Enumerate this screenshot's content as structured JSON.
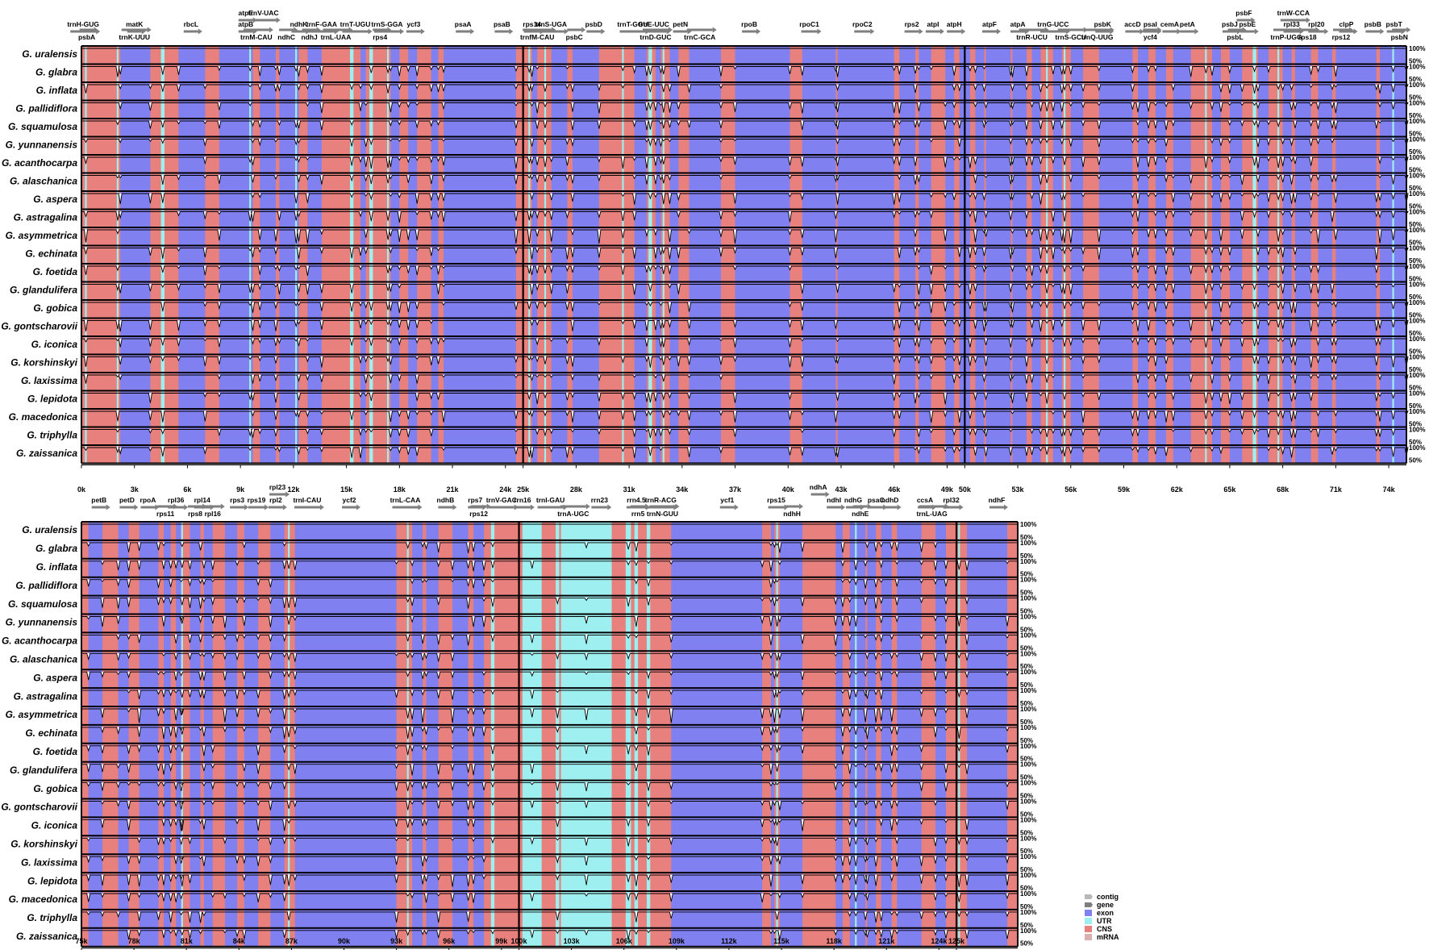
{
  "chart_data": {
    "type": "area",
    "title": "",
    "species": [
      "G. uralensis",
      "G. glabra",
      "G. inflata",
      "G. pallidiflora",
      "G. squamulosa",
      "G. yunnanensis",
      "G. acanthocarpa",
      "G. alaschanica",
      "G. aspera",
      "G. astragalina",
      "G. asymmetrica",
      "G. echinata",
      "G. foetida",
      "G. glandulifera",
      "G. gobica",
      "G. gontscharovii",
      "G. iconica",
      "G. korshinskyi",
      "G. laxissima",
      "G. lepidota",
      "G. macedonica",
      "G. triphylla",
      "G. zaissanica"
    ],
    "y_tick_labels": [
      "50%",
      "100%"
    ],
    "ylim": [
      50,
      100
    ],
    "legend": [
      {
        "label": "contig",
        "color": "#b8b8b8"
      },
      {
        "label": "gene",
        "color": "#7f7f7f"
      },
      {
        "label": "exon",
        "color": "#8080f0"
      },
      {
        "label": "UTR",
        "color": "#9ef0f0"
      },
      {
        "label": "CNS",
        "color": "#e8807e"
      },
      {
        "label": "mRNA",
        "color": "#d8b0b0"
      }
    ],
    "colors": {
      "exon": "#8080f0",
      "utr": "#9ef0f0",
      "cns": "#e8807e"
    },
    "panels": [
      {
        "xlim": [
          0,
          75000
        ],
        "x_ticks": [
          {
            "v": 0,
            "t": "0k"
          },
          {
            "v": 3000,
            "t": "3k"
          },
          {
            "v": 6000,
            "t": "6k"
          },
          {
            "v": 9000,
            "t": "9k"
          },
          {
            "v": 12000,
            "t": "12k"
          },
          {
            "v": 15000,
            "t": "15k"
          },
          {
            "v": 18000,
            "t": "18k"
          },
          {
            "v": 21000,
            "t": "21k"
          },
          {
            "v": 24000,
            "t": "24k"
          },
          {
            "v": 25000,
            "t": "25k"
          },
          {
            "v": 28000,
            "t": "28k"
          },
          {
            "v": 31000,
            "t": "31k"
          },
          {
            "v": 34000,
            "t": "34k"
          },
          {
            "v": 37000,
            "t": "37k"
          },
          {
            "v": 40000,
            "t": "40k"
          },
          {
            "v": 43000,
            "t": "43k"
          },
          {
            "v": 46000,
            "t": "46k"
          },
          {
            "v": 49000,
            "t": "49k"
          },
          {
            "v": 50000,
            "t": "50k"
          },
          {
            "v": 53000,
            "t": "53k"
          },
          {
            "v": 56000,
            "t": "56k"
          },
          {
            "v": 59000,
            "t": "59k"
          },
          {
            "v": 62000,
            "t": "62k"
          },
          {
            "v": 65000,
            "t": "65k"
          },
          {
            "v": 68000,
            "t": "68k"
          },
          {
            "v": 71000,
            "t": "71k"
          },
          {
            "v": 74000,
            "t": "74k"
          }
        ],
        "contig_breaks": [
          25000,
          50000
        ],
        "exons": [
          [
            2200,
            3900
          ],
          [
            5500,
            7000
          ],
          [
            7800,
            9700
          ],
          [
            10100,
            11000
          ],
          [
            11200,
            12300
          ],
          [
            12800,
            13600
          ],
          [
            15800,
            16100
          ],
          [
            17500,
            18000
          ],
          [
            18500,
            19000
          ],
          [
            19800,
            20200
          ],
          [
            20500,
            24600
          ],
          [
            25500,
            25800
          ],
          [
            26600,
            27500
          ],
          [
            27800,
            29300
          ],
          [
            31300,
            32000
          ],
          [
            32500,
            32800
          ],
          [
            33300,
            33800
          ],
          [
            34400,
            36200
          ],
          [
            37000,
            40100
          ],
          [
            40800,
            42700
          ],
          [
            42800,
            46000
          ],
          [
            46300,
            47200
          ],
          [
            47400,
            48100
          ],
          [
            48900,
            49400
          ],
          [
            49700,
            50300
          ],
          [
            50600,
            51100
          ],
          [
            51200,
            52600
          ],
          [
            52700,
            53500
          ],
          [
            53800,
            54300
          ],
          [
            55000,
            55500
          ],
          [
            56000,
            56700
          ],
          [
            57600,
            59500
          ],
          [
            59800,
            60400
          ],
          [
            60800,
            61400
          ],
          [
            61800,
            62800
          ],
          [
            64000,
            64500
          ],
          [
            65000,
            65700
          ],
          [
            66600,
            67200
          ],
          [
            68000,
            68500
          ],
          [
            68700,
            69600
          ],
          [
            70000,
            70800
          ],
          [
            71000,
            73300
          ],
          [
            73500,
            75000
          ]
        ],
        "utrs": [
          [
            200,
            300
          ],
          [
            2000,
            2100
          ],
          [
            4500,
            4700
          ],
          [
            9500,
            9600
          ],
          [
            12100,
            12200
          ],
          [
            15200,
            15400
          ],
          [
            16300,
            16500
          ],
          [
            17300,
            17400
          ],
          [
            25300,
            25400
          ],
          [
            26200,
            26300
          ],
          [
            30600,
            30700
          ],
          [
            32100,
            32300
          ],
          [
            32900,
            33000
          ],
          [
            54600,
            54700
          ],
          [
            55600,
            55700
          ],
          [
            63600,
            63700
          ],
          [
            66300,
            66500
          ],
          [
            67700,
            67800
          ],
          [
            74200,
            74300
          ]
        ],
        "genes_top": [
          {
            "x": 100,
            "t": "trnH-GUG"
          },
          {
            "x": 3000,
            "t": "matK"
          },
          {
            "x": 6200,
            "t": "rbcL"
          },
          {
            "x": 9300,
            "t": "atpB"
          },
          {
            "x": 12300,
            "t": "ndhK"
          },
          {
            "x": 13600,
            "t": "trnF-GAA"
          },
          {
            "x": 15500,
            "t": "trnT-UGU"
          },
          {
            "x": 17300,
            "t": "trnS-GGA"
          },
          {
            "x": 18800,
            "t": "ycf3"
          },
          {
            "x": 21600,
            "t": "psaA"
          },
          {
            "x": 23800,
            "t": "psaB"
          },
          {
            "x": 25500,
            "t": "rps14"
          },
          {
            "x": 26600,
            "t": "trnS-UGA"
          },
          {
            "x": 29000,
            "t": "psbD"
          },
          {
            "x": 31200,
            "t": "trnT-GGU"
          },
          {
            "x": 32400,
            "t": "trnE-UUC"
          },
          {
            "x": 33900,
            "t": "petN"
          },
          {
            "x": 37800,
            "t": "rpoB"
          },
          {
            "x": 41200,
            "t": "rpoC1"
          },
          {
            "x": 44200,
            "t": "rpoC2"
          },
          {
            "x": 47000,
            "t": "rps2"
          },
          {
            "x": 48200,
            "t": "atpI"
          },
          {
            "x": 49400,
            "t": "atpH"
          },
          {
            "x": 51400,
            "t": "atpF"
          },
          {
            "x": 53000,
            "t": "atpA"
          },
          {
            "x": 55000,
            "t": "trnG-UCC"
          },
          {
            "x": 57800,
            "t": "psbK"
          },
          {
            "x": 59500,
            "t": "accD"
          },
          {
            "x": 60500,
            "t": "psaI"
          },
          {
            "x": 61600,
            "t": "cemA"
          },
          {
            "x": 62600,
            "t": "petA"
          },
          {
            "x": 65000,
            "t": "psbJ"
          },
          {
            "x": 66000,
            "t": "psbE"
          },
          {
            "x": 68500,
            "t": "rpl33"
          },
          {
            "x": 69900,
            "t": "rpl20"
          },
          {
            "x": 71600,
            "t": "clpP"
          },
          {
            "x": 73100,
            "t": "psbB"
          },
          {
            "x": 74300,
            "t": "psbT"
          }
        ],
        "genes_bottom": [
          {
            "x": 300,
            "t": "psbA"
          },
          {
            "x": 3000,
            "t": "trnK-UUU"
          },
          {
            "x": 9900,
            "t": "trnM-CAU"
          },
          {
            "x": 11600,
            "t": "ndhC"
          },
          {
            "x": 12900,
            "t": "ndhJ"
          },
          {
            "x": 14400,
            "t": "trnL-UAA"
          },
          {
            "x": 16900,
            "t": "rps4"
          },
          {
            "x": 25800,
            "t": "trnfM-CAU"
          },
          {
            "x": 27900,
            "t": "psbC"
          },
          {
            "x": 32500,
            "t": "trnD-GUC"
          },
          {
            "x": 35000,
            "t": "trnC-GCA"
          },
          {
            "x": 53800,
            "t": "trnR-UCU"
          },
          {
            "x": 56000,
            "t": "trnS-GCU"
          },
          {
            "x": 57500,
            "t": "trnQ-UUG"
          },
          {
            "x": 60500,
            "t": "ycf4"
          },
          {
            "x": 65300,
            "t": "psbL"
          },
          {
            "x": 68200,
            "t": "trnP-UGG"
          },
          {
            "x": 69400,
            "t": "rps18"
          },
          {
            "x": 71300,
            "t": "rps12"
          },
          {
            "x": 74600,
            "t": "psbN"
          }
        ],
        "genes_upper": [
          {
            "x": 9300,
            "t": "atpE"
          },
          {
            "x": 10300,
            "t": "trnV-UAC"
          },
          {
            "x": 65800,
            "t": "psbF"
          },
          {
            "x": 68600,
            "t": "trnW-CCA"
          }
        ]
      },
      {
        "xlim": [
          75000,
          128500
        ],
        "x_ticks": [
          {
            "v": 75000,
            "t": "75k"
          },
          {
            "v": 78000,
            "t": "78k"
          },
          {
            "v": 81000,
            "t": "81k"
          },
          {
            "v": 84000,
            "t": "84k"
          },
          {
            "v": 87000,
            "t": "87k"
          },
          {
            "v": 90000,
            "t": "90k"
          },
          {
            "v": 93000,
            "t": "93k"
          },
          {
            "v": 96000,
            "t": "96k"
          },
          {
            "v": 99000,
            "t": "99k"
          },
          {
            "v": 100000,
            "t": "100k"
          },
          {
            "v": 103000,
            "t": "103k"
          },
          {
            "v": 106000,
            "t": "106k"
          },
          {
            "v": 109000,
            "t": "109k"
          },
          {
            "v": 112000,
            "t": "112k"
          },
          {
            "v": 115000,
            "t": "115k"
          },
          {
            "v": 118000,
            "t": "118k"
          },
          {
            "v": 121000,
            "t": "121k"
          },
          {
            "v": 124000,
            "t": "124k"
          },
          {
            "v": 125000,
            "t": "125k"
          }
        ],
        "contig_breaks": [
          100000,
          125000
        ],
        "exons": [
          [
            75400,
            76200
          ],
          [
            77100,
            77700
          ],
          [
            78300,
            79400
          ],
          [
            79700,
            80100
          ],
          [
            80400,
            80700
          ],
          [
            81200,
            81800
          ],
          [
            82000,
            82500
          ],
          [
            83200,
            83900
          ],
          [
            84300,
            85100
          ],
          [
            85800,
            86600
          ],
          [
            87200,
            93000
          ],
          [
            93900,
            94500
          ],
          [
            94700,
            95400
          ],
          [
            96200,
            97100
          ],
          [
            97400,
            98000
          ],
          [
            108700,
            113900
          ],
          [
            114400,
            114600
          ],
          [
            114900,
            116200
          ],
          [
            118100,
            118500
          ],
          [
            118900,
            119800
          ],
          [
            119900,
            120400
          ],
          [
            120700,
            121300
          ],
          [
            121600,
            123000
          ],
          [
            123800,
            124400
          ],
          [
            125600,
            127900
          ]
        ],
        "utrs": [
          [
            80700,
            80800
          ],
          [
            86800,
            86900
          ],
          [
            93600,
            93700
          ],
          [
            98400,
            98600
          ],
          [
            100200,
            101300
          ],
          [
            102100,
            102300
          ],
          [
            102400,
            105300
          ],
          [
            106100,
            106400
          ],
          [
            106600,
            106800
          ],
          [
            107300,
            107500
          ],
          [
            114700,
            114800
          ],
          [
            119200,
            119300
          ],
          [
            125100,
            125200
          ]
        ],
        "genes_top": [
          {
            "x": 76000,
            "t": "petB"
          },
          {
            "x": 77600,
            "t": "petD"
          },
          {
            "x": 78800,
            "t": "rpoA"
          },
          {
            "x": 80400,
            "t": "rpl36"
          },
          {
            "x": 81900,
            "t": "rpl14"
          },
          {
            "x": 83900,
            "t": "rps3"
          },
          {
            "x": 85000,
            "t": "rps19"
          },
          {
            "x": 86100,
            "t": "rpl2"
          },
          {
            "x": 87900,
            "t": "trnI-CAU"
          },
          {
            "x": 90300,
            "t": "ycf2"
          },
          {
            "x": 93500,
            "t": "trnL-CAA"
          },
          {
            "x": 95800,
            "t": "ndhB"
          },
          {
            "x": 97500,
            "t": "rps7"
          },
          {
            "x": 99000,
            "t": "trnV-GAC"
          },
          {
            "x": 100200,
            "t": "rrn16"
          },
          {
            "x": 101800,
            "t": "trnI-GAU"
          },
          {
            "x": 104600,
            "t": "rrn23"
          },
          {
            "x": 106700,
            "t": "rrn4.5"
          },
          {
            "x": 108100,
            "t": "trnR-ACG"
          },
          {
            "x": 111900,
            "t": "ycf1"
          },
          {
            "x": 114700,
            "t": "rps15"
          },
          {
            "x": 118000,
            "t": "ndhI"
          },
          {
            "x": 119100,
            "t": "ndhG"
          },
          {
            "x": 120400,
            "t": "psaC"
          },
          {
            "x": 121200,
            "t": "ndhD"
          },
          {
            "x": 123200,
            "t": "ccsA"
          },
          {
            "x": 124700,
            "t": "rpl32"
          },
          {
            "x": 127300,
            "t": "ndhF"
          }
        ],
        "genes_bottom": [
          {
            "x": 79800,
            "t": "rps11"
          },
          {
            "x": 81500,
            "t": "rps8"
          },
          {
            "x": 82500,
            "t": "rpl16"
          },
          {
            "x": 97700,
            "t": "rps12"
          },
          {
            "x": 103100,
            "t": "trnA-UGC"
          },
          {
            "x": 106800,
            "t": "rrn5"
          },
          {
            "x": 108200,
            "t": "trnN-GUU"
          },
          {
            "x": 115600,
            "t": "ndhH"
          },
          {
            "x": 119500,
            "t": "ndhE"
          },
          {
            "x": 123600,
            "t": "trnL-UAG"
          }
        ],
        "genes_upper": [
          {
            "x": 86200,
            "t": "rpl23"
          },
          {
            "x": 117100,
            "t": "ndhA"
          }
        ]
      }
    ]
  }
}
